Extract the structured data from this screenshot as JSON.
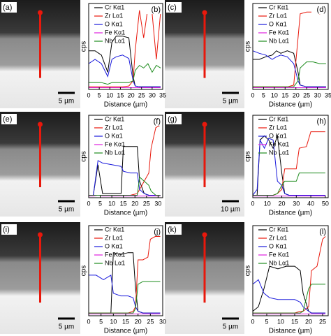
{
  "images": [
    {
      "label": "(a)",
      "scale_bar": "5 µm"
    },
    {
      "label": "(c)",
      "scale_bar": "5 µm"
    },
    {
      "label": "(e)",
      "scale_bar": "5 µm"
    },
    {
      "label": "(g)",
      "scale_bar": "10 µm"
    },
    {
      "label": "(i)",
      "scale_bar": "5 µm"
    },
    {
      "label": "(k)",
      "scale_bar": "5 µm"
    }
  ],
  "chart_data": [
    {
      "type": "line",
      "panel_label": "(b)",
      "xlabel": "Distance (µm)",
      "ylabel": "cps",
      "xlim": [
        0,
        35
      ],
      "xticks": [
        0,
        5,
        10,
        15,
        20,
        25,
        30,
        35
      ],
      "ylim": [
        0,
        100
      ],
      "x": [
        0,
        3,
        6,
        9,
        11,
        13,
        16,
        19,
        21,
        22,
        24,
        26,
        28,
        30,
        32,
        34
      ],
      "series": [
        {
          "name": "Cr Kα1",
          "color": "#000000",
          "values": [
            45,
            45,
            40,
            20,
            55,
            62,
            62,
            60,
            15,
            4,
            3,
            3,
            3,
            3,
            3,
            3
          ]
        },
        {
          "name": "Zr Lα1",
          "color": "#e8180c",
          "values": [
            3,
            3,
            3,
            3,
            3,
            3,
            3,
            4,
            10,
            45,
            92,
            60,
            95,
            88,
            35,
            90
          ]
        },
        {
          "name": "O Kα1",
          "color": "#1a1adc",
          "values": [
            30,
            35,
            30,
            15,
            35,
            38,
            40,
            36,
            10,
            4,
            3,
            3,
            3,
            3,
            3,
            3
          ]
        },
        {
          "name": "Fe Kα1",
          "color": "#e020e0",
          "values": [
            2,
            2,
            2,
            2,
            2,
            2,
            2,
            2,
            2,
            2,
            2,
            2,
            2,
            2,
            2,
            2
          ]
        },
        {
          "name": "Nb Lα1",
          "color": "#1e8c1e",
          "values": [
            8,
            8,
            8,
            6,
            8,
            8,
            8,
            8,
            10,
            22,
            28,
            25,
            30,
            20,
            28,
            25
          ]
        }
      ]
    },
    {
      "type": "line",
      "panel_label": "(d)",
      "xlabel": "Distance (µm)",
      "ylabel": "cps",
      "xlim": [
        0,
        35
      ],
      "xticks": [
        0,
        5,
        10,
        15,
        20,
        25,
        30,
        35
      ],
      "ylim": [
        0,
        100
      ],
      "x": [
        0,
        3,
        6,
        9,
        11,
        13,
        16,
        19,
        21,
        22,
        25,
        28,
        31,
        34
      ],
      "series": [
        {
          "name": "Cr Kα1",
          "color": "#000000",
          "values": [
            35,
            35,
            38,
            40,
            45,
            42,
            45,
            42,
            20,
            5,
            3,
            3,
            3,
            3
          ]
        },
        {
          "name": "Zr Lα1",
          "color": "#e8180c",
          "values": [
            3,
            3,
            3,
            3,
            3,
            3,
            3,
            5,
            60,
            88,
            90,
            90,
            88,
            90
          ]
        },
        {
          "name": "O Kα1",
          "color": "#1a1adc",
          "values": [
            45,
            42,
            40,
            35,
            38,
            40,
            38,
            30,
            10,
            5,
            3,
            3,
            3,
            3
          ]
        },
        {
          "name": "Fe Kα1",
          "color": "#e020e0",
          "values": [
            2,
            2,
            2,
            2,
            2,
            2,
            2,
            2,
            2,
            2,
            2,
            2,
            2,
            2
          ]
        },
        {
          "name": "Nb Lα1",
          "color": "#1e8c1e",
          "values": [
            3,
            3,
            3,
            3,
            3,
            3,
            3,
            3,
            10,
            25,
            32,
            32,
            30,
            30
          ]
        }
      ]
    },
    {
      "type": "line",
      "panel_label": "(f)",
      "xlabel": "Distance (µm)",
      "ylabel": "cps",
      "xlim": [
        0,
        32
      ],
      "xticks": [
        0,
        5,
        10,
        15,
        20,
        25,
        30
      ],
      "ylim": [
        0,
        100
      ],
      "x": [
        0,
        2,
        4,
        6,
        10,
        14,
        15,
        18,
        21,
        22,
        24,
        26,
        27,
        29,
        31
      ],
      "series": [
        {
          "name": "Cr Kα1",
          "color": "#000000",
          "values": [
            3,
            3,
            40,
            5,
            5,
            5,
            62,
            62,
            62,
            20,
            5,
            3,
            3,
            3,
            3
          ]
        },
        {
          "name": "Zr Lα1",
          "color": "#e8180c",
          "values": [
            3,
            3,
            3,
            3,
            3,
            3,
            3,
            3,
            5,
            10,
            20,
            30,
            60,
            85,
            88
          ]
        },
        {
          "name": "O Kα1",
          "color": "#1a1adc",
          "values": [
            3,
            3,
            45,
            42,
            40,
            38,
            32,
            30,
            30,
            10,
            5,
            3,
            3,
            3,
            3
          ]
        },
        {
          "name": "Fe Kα1",
          "color": "#e020e0",
          "values": [
            2,
            2,
            3,
            2,
            2,
            2,
            2,
            2,
            2,
            2,
            2,
            2,
            2,
            2,
            2
          ]
        },
        {
          "name": "Nb Lα1",
          "color": "#1e8c1e",
          "values": [
            3,
            3,
            3,
            3,
            3,
            3,
            3,
            3,
            3,
            25,
            20,
            15,
            8,
            3,
            3
          ]
        }
      ]
    },
    {
      "type": "line",
      "panel_label": "(h)",
      "xlabel": "Distance (µm)",
      "ylabel": "cps",
      "xlim": [
        0,
        52
      ],
      "xticks": [
        0,
        10,
        20,
        30,
        40,
        50
      ],
      "ylim": [
        0,
        100
      ],
      "x": [
        0,
        3,
        5,
        8,
        11,
        14,
        17,
        20,
        22,
        25,
        30,
        32,
        37,
        40,
        45,
        50
      ],
      "series": [
        {
          "name": "Cr Kα1",
          "color": "#000000",
          "values": [
            3,
            3,
            70,
            75,
            70,
            60,
            75,
            30,
            5,
            3,
            3,
            3,
            3,
            3,
            3,
            3
          ]
        },
        {
          "name": "Zr Lα1",
          "color": "#e8180c",
          "values": [
            3,
            3,
            3,
            3,
            3,
            3,
            5,
            10,
            35,
            35,
            35,
            60,
            62,
            80,
            80,
            80
          ]
        },
        {
          "name": "O Kα1",
          "color": "#1a1adc",
          "values": [
            3,
            10,
            70,
            60,
            72,
            70,
            20,
            15,
            5,
            3,
            3,
            3,
            3,
            3,
            3,
            3
          ]
        },
        {
          "name": "Fe Kα1",
          "color": "#e020e0",
          "values": [
            2,
            2,
            2,
            2,
            2,
            2,
            2,
            2,
            2,
            2,
            2,
            2,
            2,
            2,
            2,
            2
          ]
        },
        {
          "name": "Nb Lα1",
          "color": "#1e8c1e",
          "values": [
            3,
            3,
            3,
            3,
            3,
            3,
            5,
            15,
            20,
            20,
            20,
            30,
            30,
            30,
            30,
            30
          ]
        }
      ]
    },
    {
      "type": "line",
      "panel_label": "(j)",
      "xlabel": "Distance (µm)",
      "ylabel": "cps",
      "xlim": [
        0,
        30
      ],
      "xticks": [
        0,
        5,
        10,
        15,
        20,
        25,
        30
      ],
      "ylim": [
        0,
        100
      ],
      "x": [
        0,
        3,
        6,
        9,
        10,
        13,
        16,
        18,
        19,
        20,
        22,
        24,
        25,
        27,
        29
      ],
      "series": [
        {
          "name": "Cr Kα1",
          "color": "#000000",
          "values": [
            3,
            3,
            3,
            3,
            70,
            68,
            70,
            70,
            30,
            5,
            3,
            3,
            3,
            3,
            3
          ]
        },
        {
          "name": "Zr Lα1",
          "color": "#e8180c",
          "values": [
            3,
            3,
            3,
            3,
            3,
            3,
            3,
            5,
            10,
            62,
            62,
            65,
            85,
            88,
            88
          ]
        },
        {
          "name": "O Kα1",
          "color": "#1a1adc",
          "values": [
            45,
            45,
            40,
            45,
            25,
            22,
            22,
            20,
            10,
            5,
            3,
            3,
            3,
            3,
            3
          ]
        },
        {
          "name": "Fe Kα1",
          "color": "#e020e0",
          "values": [
            2,
            2,
            2,
            2,
            2,
            2,
            2,
            2,
            2,
            2,
            2,
            2,
            2,
            2,
            2
          ]
        },
        {
          "name": "Nb Lα1",
          "color": "#1e8c1e",
          "values": [
            3,
            3,
            3,
            3,
            3,
            3,
            3,
            3,
            8,
            35,
            38,
            38,
            38,
            38,
            38
          ]
        }
      ]
    },
    {
      "type": "line",
      "panel_label": "(l)",
      "xlabel": "Distance (µm)",
      "ylabel": "cps",
      "xlim": [
        0,
        27
      ],
      "xticks": [
        0,
        5,
        10,
        15,
        20,
        25
      ],
      "ylim": [
        0,
        100
      ],
      "x": [
        0,
        2,
        4,
        6,
        9,
        12,
        15,
        17,
        18,
        20,
        21,
        23,
        25,
        26
      ],
      "series": [
        {
          "name": "Cr Kα1",
          "color": "#000000",
          "values": [
            5,
            10,
            30,
            55,
            52,
            55,
            55,
            50,
            25,
            5,
            3,
            3,
            3,
            3
          ]
        },
        {
          "name": "Zr Lα1",
          "color": "#e8180c",
          "values": [
            3,
            3,
            3,
            3,
            3,
            3,
            3,
            5,
            5,
            10,
            50,
            55,
            85,
            88
          ]
        },
        {
          "name": "O Kα1",
          "color": "#1a1adc",
          "values": [
            35,
            40,
            25,
            20,
            18,
            18,
            18,
            15,
            10,
            5,
            3,
            3,
            3,
            3
          ]
        },
        {
          "name": "Fe Kα1",
          "color": "#e020e0",
          "values": [
            2,
            2,
            2,
            2,
            2,
            2,
            2,
            2,
            2,
            2,
            2,
            2,
            2,
            2
          ]
        },
        {
          "name": "Nb Lα1",
          "color": "#1e8c1e",
          "values": [
            3,
            3,
            3,
            3,
            3,
            3,
            3,
            3,
            5,
            30,
            35,
            35,
            35,
            35
          ]
        }
      ]
    }
  ]
}
